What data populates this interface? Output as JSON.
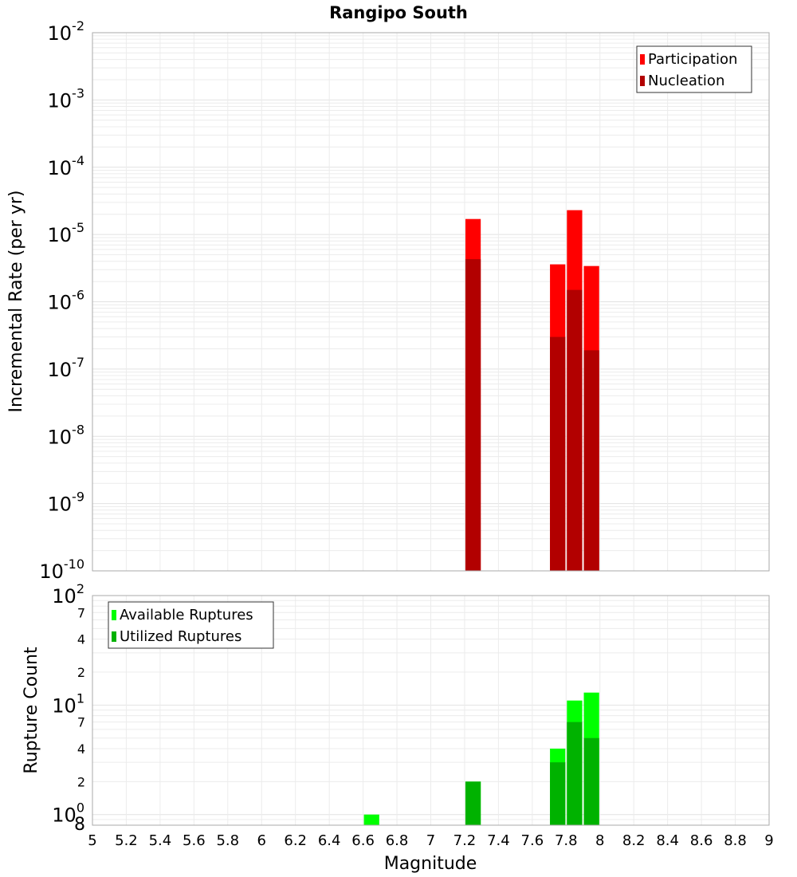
{
  "chart_data": [
    {
      "type": "bar",
      "title": "Rangipo South",
      "xlabel": "Magnitude",
      "ylabel": "Incremental Rate (per yr)",
      "xlim": [
        5,
        9
      ],
      "ylim": [
        1e-10,
        0.01
      ],
      "yscale": "log",
      "grid": true,
      "legend_position": "top-right",
      "bin_width": 0.1,
      "y_tick_exponents": [
        "-10",
        "-9",
        "-8",
        "-7",
        "-6",
        "-5",
        "-4",
        "-3",
        "-2"
      ],
      "y_tick_base": "10",
      "series": [
        {
          "name": "Participation",
          "color": "#ff0000",
          "x": [
            7.25,
            7.75,
            7.85,
            7.95
          ],
          "values": [
            1.7e-05,
            3.6e-06,
            2.3e-05,
            3.4e-06
          ]
        },
        {
          "name": "Nucleation",
          "color": "#b20000",
          "x": [
            7.25,
            7.75,
            7.85,
            7.95
          ],
          "values": [
            4.3e-06,
            3e-07,
            1.5e-06,
            1.9e-07
          ]
        }
      ]
    },
    {
      "type": "bar",
      "xlabel": "Magnitude",
      "ylabel": "Rupture Count",
      "xlim": [
        5,
        9
      ],
      "ylim": [
        0.8,
        100
      ],
      "yscale": "log",
      "grid": true,
      "legend_position": "top-left",
      "bin_width": 0.1,
      "x_ticks": [
        "5",
        "5.2",
        "5.4",
        "5.6",
        "5.8",
        "6",
        "6.2",
        "6.4",
        "6.6",
        "6.8",
        "7",
        "7.2",
        "7.4",
        "7.6",
        "7.8",
        "8",
        "8.2",
        "8.4",
        "8.6",
        "8.8",
        "9"
      ],
      "y_major_ticks": [
        {
          "value": 1,
          "base": "10",
          "exp": "0"
        },
        {
          "value": 10,
          "base": "10",
          "exp": "1"
        },
        {
          "value": 100,
          "base": "10",
          "exp": "2"
        }
      ],
      "y_minor_ticks": [
        {
          "value": 0.8,
          "label": "8"
        },
        {
          "value": 2,
          "label": "2"
        },
        {
          "value": 4,
          "label": "4"
        },
        {
          "value": 7,
          "label": "7"
        },
        {
          "value": 20,
          "label": "2"
        },
        {
          "value": 40,
          "label": "4"
        },
        {
          "value": 70,
          "label": "7"
        }
      ],
      "series": [
        {
          "name": "Available Ruptures",
          "color": "#00ff00",
          "x": [
            6.65,
            7.25,
            7.75,
            7.85,
            7.95
          ],
          "values": [
            1,
            2,
            4,
            11,
            13
          ]
        },
        {
          "name": "Utilized Ruptures",
          "color": "#00b200",
          "x": [
            6.65,
            7.25,
            7.75,
            7.85,
            7.95
          ],
          "values": [
            0,
            2,
            3,
            7,
            5
          ]
        }
      ]
    }
  ]
}
